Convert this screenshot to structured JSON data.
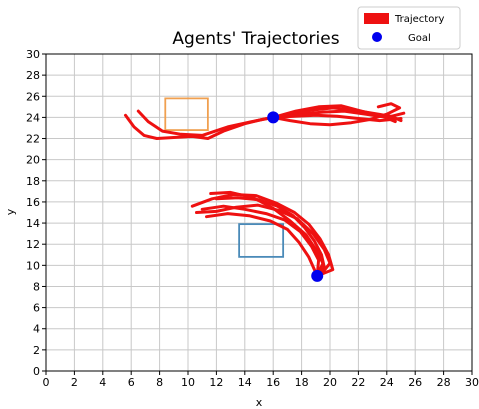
{
  "chart_data": {
    "type": "line",
    "title": "Agents' Trajectories",
    "xlabel": "x",
    "ylabel": "y",
    "xlim": [
      0,
      30
    ],
    "ylim": [
      0,
      30
    ],
    "xticks": [
      0,
      2,
      4,
      6,
      8,
      10,
      12,
      14,
      16,
      18,
      20,
      22,
      24,
      26,
      28,
      30
    ],
    "yticks": [
      0,
      2,
      4,
      6,
      8,
      10,
      12,
      14,
      16,
      18,
      20,
      22,
      24,
      26,
      28,
      30
    ],
    "grid": true,
    "legend": {
      "placement": "top-right",
      "entries": [
        {
          "label": "Trajectory",
          "color": "#ee1111",
          "marker": "patch"
        },
        {
          "label": "Goal",
          "color": "#0000ee",
          "marker": "dot"
        }
      ]
    },
    "colors": {
      "trajectory": "#ee1111",
      "goal": "#0000ee",
      "box_upper": "#f0a050",
      "box_lower": "#4a8ab8"
    },
    "boxes": [
      {
        "name": "upper",
        "x": [
          8.4,
          11.4
        ],
        "y": [
          22.8,
          25.8
        ]
      },
      {
        "name": "lower",
        "x": [
          13.6,
          16.7
        ],
        "y": [
          10.8,
          13.9
        ]
      }
    ],
    "goals": [
      {
        "x": 16.0,
        "y": 24.0
      },
      {
        "x": 19.1,
        "y": 9.0
      }
    ],
    "trajectories": [
      {
        "points": [
          [
            5.6,
            24.2
          ],
          [
            6.2,
            23.1
          ],
          [
            6.9,
            22.3
          ],
          [
            7.8,
            22.0
          ],
          [
            9.0,
            22.1
          ],
          [
            10.3,
            22.2
          ],
          [
            11.4,
            22.0
          ],
          [
            12.5,
            22.7
          ],
          [
            14.0,
            23.4
          ],
          [
            15.2,
            23.8
          ],
          [
            16.0,
            24.0
          ],
          [
            17.5,
            24.1
          ],
          [
            19.0,
            24.2
          ],
          [
            20.5,
            24.1
          ],
          [
            22.0,
            23.9
          ],
          [
            23.5,
            23.7
          ],
          [
            25.0,
            23.9
          ]
        ]
      },
      {
        "points": [
          [
            6.5,
            24.6
          ],
          [
            7.2,
            23.6
          ],
          [
            8.2,
            22.7
          ],
          [
            9.5,
            22.4
          ],
          [
            11.0,
            22.3
          ],
          [
            12.8,
            23.1
          ],
          [
            14.5,
            23.6
          ],
          [
            16.0,
            24.0
          ],
          [
            17.8,
            24.3
          ],
          [
            19.5,
            24.5
          ],
          [
            21.0,
            24.6
          ],
          [
            22.5,
            24.3
          ],
          [
            24.0,
            24.0
          ],
          [
            25.2,
            24.4
          ]
        ]
      },
      {
        "points": [
          [
            16.0,
            24.0
          ],
          [
            17.4,
            24.4
          ],
          [
            18.8,
            24.7
          ],
          [
            20.2,
            24.9
          ],
          [
            21.6,
            24.7
          ],
          [
            23.0,
            24.4
          ],
          [
            24.3,
            24.1
          ],
          [
            25.0,
            23.7
          ]
        ]
      },
      {
        "points": [
          [
            16.0,
            24.0
          ],
          [
            17.2,
            23.7
          ],
          [
            18.6,
            23.4
          ],
          [
            20.0,
            23.3
          ],
          [
            21.5,
            23.5
          ],
          [
            22.8,
            23.8
          ],
          [
            24.0,
            24.3
          ],
          [
            24.9,
            24.9
          ],
          [
            24.3,
            25.3
          ],
          [
            23.4,
            25.0
          ]
        ]
      },
      {
        "points": [
          [
            16.0,
            24.0
          ],
          [
            17.6,
            24.6
          ],
          [
            19.2,
            25.0
          ],
          [
            20.8,
            25.1
          ],
          [
            22.2,
            24.6
          ],
          [
            23.7,
            24.1
          ],
          [
            24.6,
            23.6
          ]
        ]
      },
      {
        "points": [
          [
            12.0,
            16.3
          ],
          [
            13.5,
            16.4
          ],
          [
            15.0,
            16.2
          ],
          [
            16.3,
            15.6
          ],
          [
            17.4,
            14.7
          ],
          [
            18.2,
            13.6
          ],
          [
            18.9,
            12.3
          ],
          [
            19.4,
            11.0
          ],
          [
            19.6,
            9.8
          ],
          [
            19.1,
            9.0
          ]
        ]
      },
      {
        "points": [
          [
            11.0,
            15.3
          ],
          [
            12.5,
            15.6
          ],
          [
            14.0,
            15.3
          ],
          [
            15.5,
            14.9
          ],
          [
            16.8,
            14.3
          ],
          [
            17.9,
            13.2
          ],
          [
            18.7,
            11.8
          ],
          [
            19.2,
            10.5
          ],
          [
            19.1,
            9.0
          ]
        ]
      },
      {
        "points": [
          [
            10.3,
            15.6
          ],
          [
            11.7,
            16.3
          ],
          [
            13.2,
            16.7
          ],
          [
            14.8,
            16.6
          ],
          [
            16.2,
            15.9
          ],
          [
            17.5,
            15.0
          ],
          [
            18.5,
            13.9
          ],
          [
            19.3,
            12.5
          ],
          [
            19.9,
            11.0
          ],
          [
            20.2,
            9.6
          ],
          [
            19.1,
            9.0
          ]
        ]
      },
      {
        "points": [
          [
            11.3,
            14.6
          ],
          [
            12.8,
            14.9
          ],
          [
            14.3,
            14.7
          ],
          [
            15.8,
            14.2
          ],
          [
            17.0,
            13.4
          ],
          [
            17.8,
            12.2
          ],
          [
            18.5,
            10.8
          ],
          [
            18.9,
            9.6
          ],
          [
            19.1,
            9.0
          ]
        ]
      },
      {
        "points": [
          [
            10.6,
            15.0
          ],
          [
            12.0,
            15.1
          ],
          [
            13.4,
            15.5
          ],
          [
            14.9,
            15.7
          ],
          [
            16.4,
            15.2
          ],
          [
            17.7,
            14.4
          ],
          [
            18.8,
            13.0
          ],
          [
            19.6,
            11.5
          ],
          [
            20.0,
            10.2
          ],
          [
            19.4,
            9.2
          ]
        ]
      },
      {
        "points": [
          [
            11.6,
            16.8
          ],
          [
            13.0,
            16.9
          ],
          [
            14.6,
            16.4
          ],
          [
            16.0,
            15.4
          ],
          [
            17.2,
            14.2
          ],
          [
            18.3,
            12.9
          ],
          [
            19.0,
            11.5
          ],
          [
            19.5,
            10.2
          ],
          [
            19.1,
            9.0
          ]
        ]
      }
    ]
  }
}
